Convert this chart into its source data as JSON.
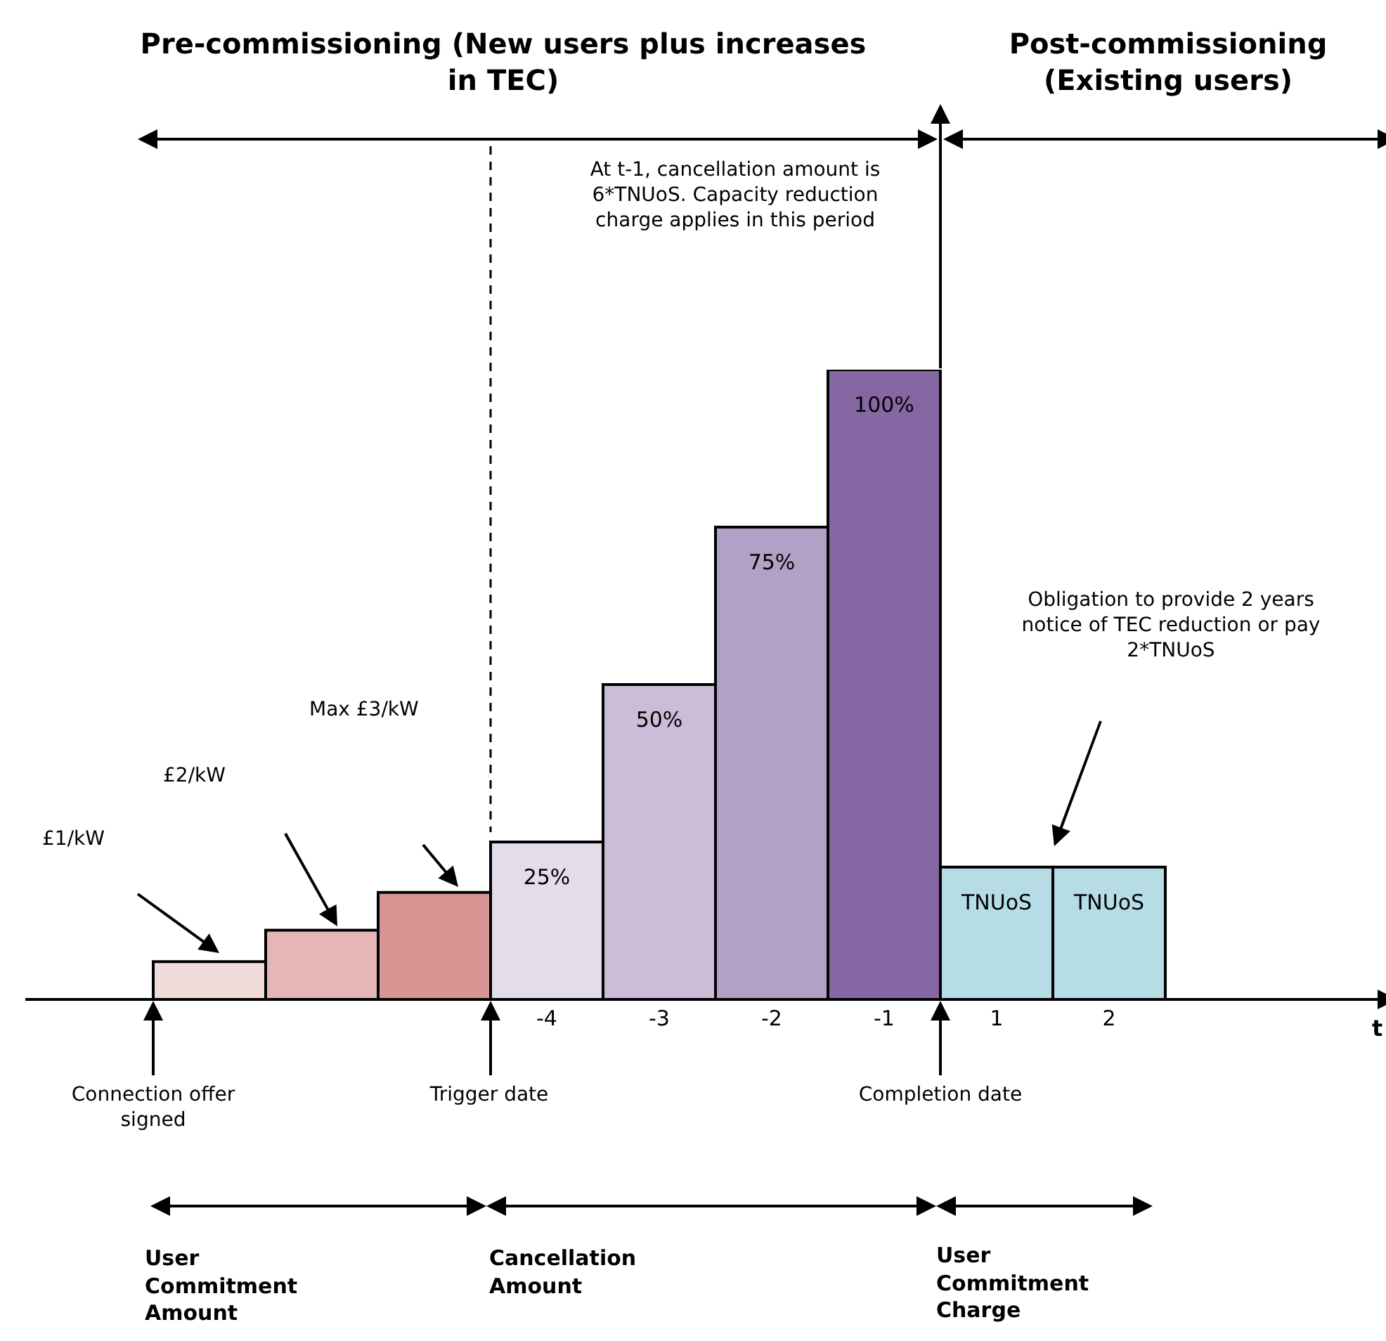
{
  "chart_data": {
    "type": "bar",
    "tick_labels": "x",
    "categories": [
      null,
      null,
      null,
      "-4",
      "-3",
      "-2",
      "-1",
      "1",
      "2"
    ],
    "values": [
      6,
      11,
      17,
      25,
      50,
      75,
      100,
      21,
      21
    ],
    "colors": [
      "#f0dbdb",
      "#e4b6b6",
      "#d99494",
      "#e3dcea",
      "#cbbdd8",
      "#b1a1c6",
      "#8467a3",
      "#b6dce6",
      "#b6dce6"
    ],
    "value_labels": [
      null,
      null,
      null,
      "25%",
      "50%",
      "75%",
      "100%",
      "TNUoS",
      "TNUoS"
    ],
    "annotations": [
      "Pre-commissioning (New users plus increases in TEC)",
      "Post-commissioning (Existing users)",
      "At t-1, cancellation amount is 6*TNUoS. Capacity reduction charge applies in this period",
      "£1/kW",
      "£2/kW",
      "Max £3/kW",
      "Obligation to provide 2 years notice of TEC reduction or pay 2*TNUoS",
      "Connection offer signed",
      "Trigger date",
      "Completion date",
      "User Commitment Amount",
      "Cancellation Amount",
      "User Commitment Charge",
      "t"
    ]
  }
}
